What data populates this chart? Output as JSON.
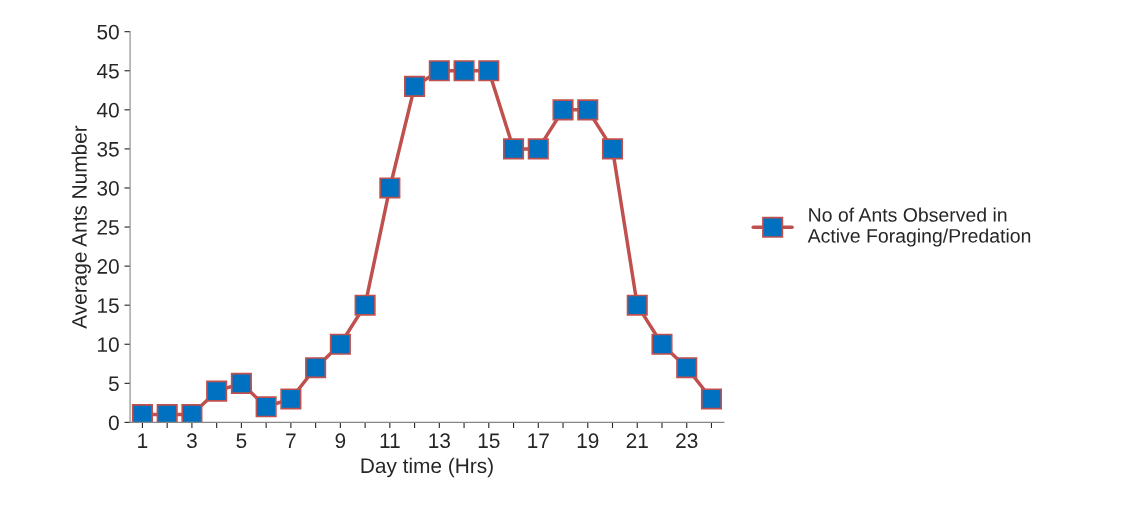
{
  "chart_data": {
    "type": "line",
    "xlabel": "Day time (Hrs)",
    "ylabel": "Average Ants Number",
    "categories": [
      "1",
      null,
      "3",
      null,
      "5",
      null,
      "7",
      null,
      "9",
      null,
      "11",
      null,
      "13",
      null,
      "15",
      null,
      "17",
      null,
      "19",
      null,
      "21",
      null,
      "23",
      null
    ],
    "series": [
      {
        "name": "No of Ants Observed in Active Foraging/Predation",
        "color": "#c0504d",
        "values": [
          1,
          1,
          1,
          4,
          5,
          2,
          3,
          7,
          10,
          15,
          30,
          43,
          45,
          45,
          45,
          35,
          35,
          40,
          40,
          35,
          15,
          10,
          7,
          3
        ]
      }
    ],
    "ylim": [
      0,
      50
    ],
    "yticks": [
      0,
      5,
      10,
      15,
      20,
      25,
      30,
      35,
      40,
      45,
      50
    ],
    "grid": false,
    "legend": "right",
    "marker": "square",
    "line_style": "solid"
  }
}
